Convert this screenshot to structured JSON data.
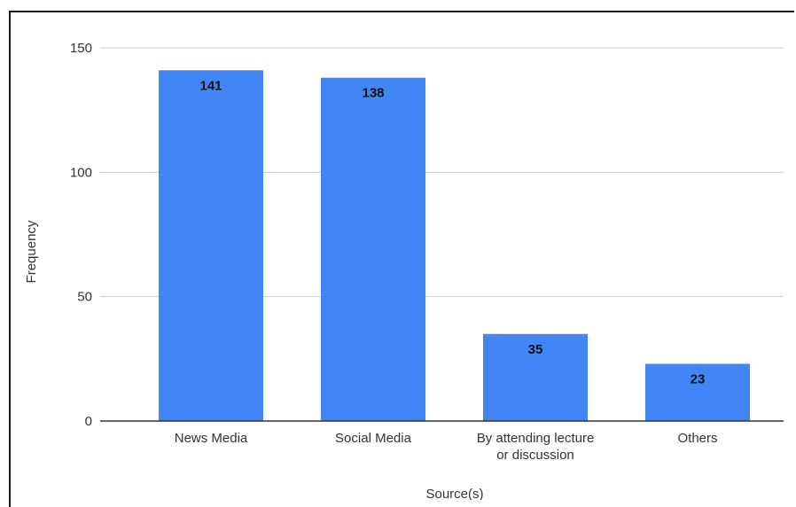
{
  "chart_data": {
    "type": "bar",
    "categories": [
      [
        "News Media"
      ],
      [
        "Social Media"
      ],
      [
        "By attending lecture",
        "or discussion"
      ],
      [
        "Others"
      ]
    ],
    "values": [
      141,
      138,
      35,
      23
    ],
    "data_labels": [
      "141",
      "138",
      "35",
      "23"
    ],
    "xlabel": "Source(s)",
    "ylabel": "Frequency",
    "ylim": [
      0,
      150
    ],
    "yticks": [
      0,
      50,
      100,
      150
    ],
    "ytick_labels": [
      "0",
      "50",
      "100",
      "150"
    ],
    "grid": true,
    "legend": "none",
    "colors": {
      "bar": "#4285f4",
      "grid": "#cccccc",
      "axis": "#333333"
    }
  }
}
